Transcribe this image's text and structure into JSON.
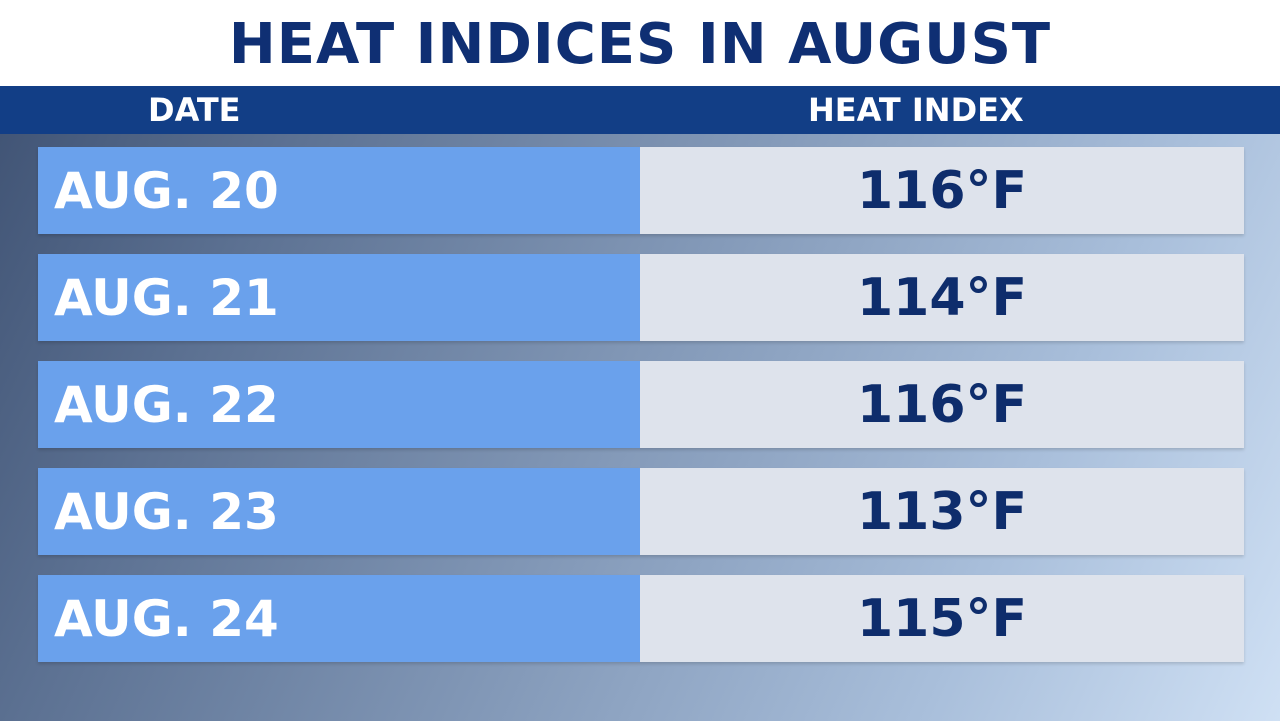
{
  "title": "HEAT INDICES IN AUGUST",
  "columns": {
    "date": "DATE",
    "heat_index": "HEAT INDEX"
  },
  "rows": [
    {
      "date": "AUG. 20",
      "heat_index": "116°F"
    },
    {
      "date": "AUG. 21",
      "heat_index": "114°F"
    },
    {
      "date": "AUG. 22",
      "heat_index": "116°F"
    },
    {
      "date": "AUG. 23",
      "heat_index": "113°F"
    },
    {
      "date": "AUG. 24",
      "heat_index": "115°F"
    }
  ],
  "colors": {
    "title_text": "#0f2f73",
    "header_bar": "#123e86",
    "date_cell": "#6aa1ec",
    "value_cell": "#dee3ec",
    "value_text": "#0e2d6c"
  }
}
